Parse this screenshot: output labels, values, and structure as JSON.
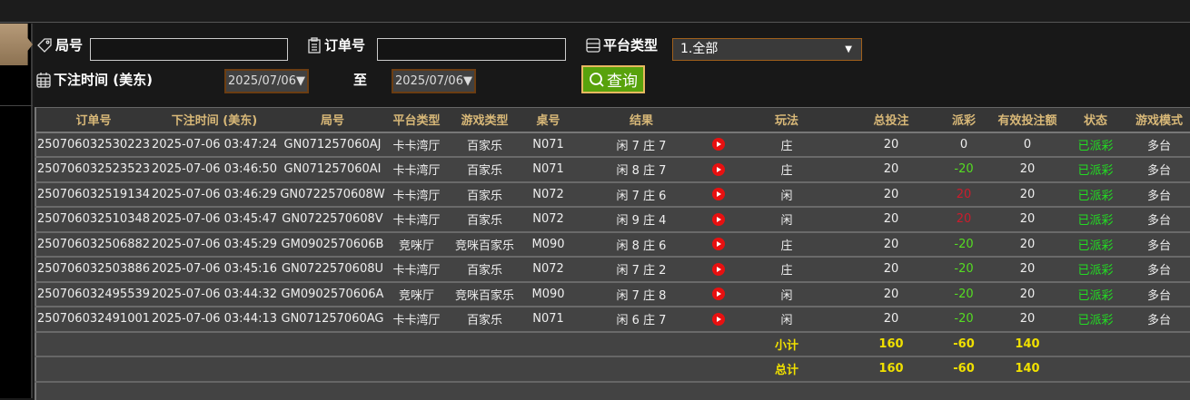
{
  "filters": {
    "round_label": "局号",
    "round_value": "",
    "order_label": "订单号",
    "order_value": "",
    "platform_label": "平台类型",
    "platform_selected": "1.全部",
    "time_label": "下注时间 (美东)",
    "date_from": "2025/07/06▼",
    "to_label": "至",
    "date_to": "2025/07/06▼",
    "query_label": "查询"
  },
  "colors": {
    "accent_green": "#58a20c",
    "header_text": "#d8b878",
    "negative": "#55dd22",
    "positive": "#cc1c2c",
    "total_text": "#f0e000"
  },
  "table": {
    "headers": [
      "订单号",
      "下注时间 (美东)",
      "局号",
      "平台类型",
      "游戏类型",
      "桌号",
      "结果",
      "",
      "玩法",
      "总投注",
      "派彩",
      "有效投注额",
      "状态",
      "游戏模式"
    ],
    "rows": [
      {
        "order": "250706032530223",
        "time": "2025-07-06 03:47:24",
        "round": "GN071257060AJ",
        "platform": "卡卡湾厅",
        "game": "百家乐",
        "table": "N071",
        "result": "闲 7 庄 7",
        "bet_type": "庄",
        "total_bet": "20",
        "payout": "0",
        "payout_color": "neutral",
        "valid_bet": "0",
        "status": "已派彩",
        "mode": "多台"
      },
      {
        "order": "250706032523523",
        "time": "2025-07-06 03:46:50",
        "round": "GN071257060AI",
        "platform": "卡卡湾厅",
        "game": "百家乐",
        "table": "N071",
        "result": "闲 8 庄 7",
        "bet_type": "庄",
        "total_bet": "20",
        "payout": "-20",
        "payout_color": "green",
        "valid_bet": "20",
        "status": "已派彩",
        "mode": "多台"
      },
      {
        "order": "250706032519134",
        "time": "2025-07-06 03:46:29",
        "round": "GN0722570608W",
        "platform": "卡卡湾厅",
        "game": "百家乐",
        "table": "N072",
        "result": "闲 7 庄 6",
        "bet_type": "闲",
        "total_bet": "20",
        "payout": "20",
        "payout_color": "red",
        "valid_bet": "20",
        "status": "已派彩",
        "mode": "多台"
      },
      {
        "order": "250706032510348",
        "time": "2025-07-06 03:45:47",
        "round": "GN0722570608V",
        "platform": "卡卡湾厅",
        "game": "百家乐",
        "table": "N072",
        "result": "闲 9 庄 4",
        "bet_type": "闲",
        "total_bet": "20",
        "payout": "20",
        "payout_color": "red",
        "valid_bet": "20",
        "status": "已派彩",
        "mode": "多台"
      },
      {
        "order": "250706032506882",
        "time": "2025-07-06 03:45:29",
        "round": "GM0902570606B",
        "platform": "竞咪厅",
        "game": "竞咪百家乐",
        "table": "M090",
        "result": "闲 8 庄 6",
        "bet_type": "庄",
        "total_bet": "20",
        "payout": "-20",
        "payout_color": "green",
        "valid_bet": "20",
        "status": "已派彩",
        "mode": "多台"
      },
      {
        "order": "250706032503886",
        "time": "2025-07-06 03:45:16",
        "round": "GN0722570608U",
        "platform": "卡卡湾厅",
        "game": "百家乐",
        "table": "N072",
        "result": "闲 7 庄 2",
        "bet_type": "庄",
        "total_bet": "20",
        "payout": "-20",
        "payout_color": "green",
        "valid_bet": "20",
        "status": "已派彩",
        "mode": "多台"
      },
      {
        "order": "250706032495539",
        "time": "2025-07-06 03:44:32",
        "round": "GM0902570606A",
        "platform": "竞咪厅",
        "game": "竞咪百家乐",
        "table": "M090",
        "result": "闲 7 庄 8",
        "bet_type": "闲",
        "total_bet": "20",
        "payout": "-20",
        "payout_color": "green",
        "valid_bet": "20",
        "status": "已派彩",
        "mode": "多台"
      },
      {
        "order": "250706032491001",
        "time": "2025-07-06 03:44:13",
        "round": "GN071257060AG",
        "platform": "卡卡湾厅",
        "game": "百家乐",
        "table": "N071",
        "result": "闲 6 庄 7",
        "bet_type": "闲",
        "total_bet": "20",
        "payout": "-20",
        "payout_color": "green",
        "valid_bet": "20",
        "status": "已派彩",
        "mode": "多台"
      }
    ],
    "subtotal": {
      "label": "小计",
      "total_bet": "160",
      "payout": "-60",
      "valid_bet": "140"
    },
    "total": {
      "label": "总计",
      "total_bet": "160",
      "payout": "-60",
      "valid_bet": "140"
    }
  }
}
